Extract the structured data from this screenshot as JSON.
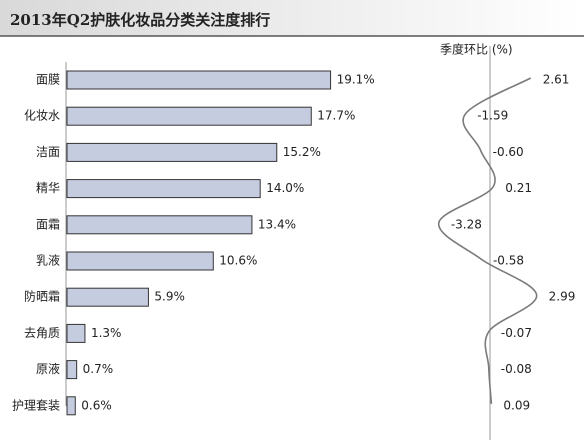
{
  "chart_data": [
    {
      "type": "bar",
      "orientation": "horizontal",
      "title": "2013年Q2护肤化妆品分类关注度排行",
      "categories": [
        "面膜",
        "化妆水",
        "洁面",
        "精华",
        "面霜",
        "乳液",
        "防晒霜",
        "去角质",
        "原液",
        "护理套装"
      ],
      "values": [
        19.1,
        17.7,
        15.2,
        14.0,
        13.4,
        10.6,
        5.9,
        1.3,
        0.7,
        0.6
      ],
      "value_labels": [
        "19.1%",
        "17.7%",
        "15.2%",
        "14.0%",
        "13.4%",
        "10.6%",
        "5.9%",
        "1.3%",
        "0.7%",
        "0.6%"
      ],
      "color": "#c6cce0"
    },
    {
      "type": "line",
      "title": "季度环比 (%)",
      "values": [
        2.61,
        -1.59,
        -0.6,
        0.21,
        -3.28,
        -0.58,
        2.99,
        -0.07,
        -0.08,
        0.09
      ],
      "value_labels": [
        "2.61",
        "-1.59",
        "-0.60",
        "0.21",
        "-3.28",
        "-0.58",
        "2.99",
        "-0.07",
        "-0.08",
        "0.09"
      ],
      "color": "#7a7a7a"
    }
  ]
}
